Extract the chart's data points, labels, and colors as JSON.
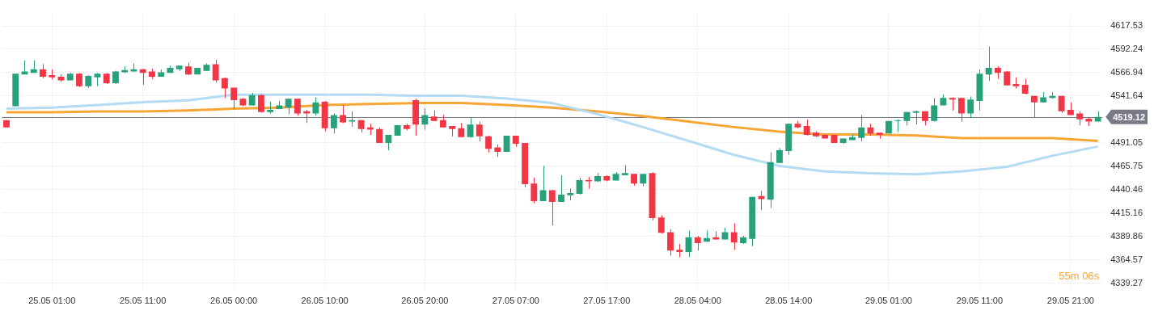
{
  "chart_data": {
    "type": "candlestick",
    "categories": [
      null,
      null,
      null,
      null,
      null,
      "25.05 01:00",
      null,
      null,
      null,
      null,
      null,
      null,
      null,
      null,
      null,
      "25.05 11:00",
      null,
      null,
      null,
      null,
      null,
      null,
      null,
      null,
      null,
      "26.05 00:00",
      null,
      null,
      null,
      null,
      null,
      null,
      null,
      null,
      null,
      "26.05 10:00",
      null,
      null,
      null,
      null,
      null,
      null,
      null,
      null,
      null,
      null,
      "26.05 20:00",
      null,
      null,
      null,
      null,
      null,
      null,
      null,
      null,
      null,
      "27.05 07:00",
      null,
      null,
      null,
      null,
      null,
      null,
      null,
      null,
      null,
      "27.05 17:00",
      null,
      null,
      null,
      null,
      null,
      null,
      null,
      null,
      null,
      "28.05 04:00",
      null,
      null,
      null,
      null,
      null,
      null,
      null,
      null,
      null,
      "28.05 14:00",
      null,
      null,
      null,
      null,
      null,
      null,
      null,
      null,
      null,
      null,
      "29.05 01:00",
      null,
      null,
      null,
      null,
      null,
      null,
      null,
      null,
      null,
      "29.05 11:00",
      null,
      null,
      null,
      null,
      null,
      null,
      null,
      null,
      null,
      "29.05 21:00",
      null,
      null,
      null
    ],
    "ylim": [
      4332,
      4631
    ],
    "yticks": [
      4339.27,
      4364.57,
      4389.86,
      4415.16,
      4440.46,
      4465.75,
      4491.05,
      4541.64,
      4566.94,
      4592.24,
      4617.53
    ],
    "grid": true,
    "ref_lines": [
      {
        "axis": "y",
        "value": 4519.12,
        "label": "4519.12",
        "color": "#787b86"
      }
    ],
    "annotations": [
      "55m 06s"
    ],
    "series": [
      {
        "ohlc": [
          [
            4515.5,
            4515.5,
            4507.6,
            4507.6
          ],
          [
            4530.7,
            4565.8,
            4530.7,
            4565.8
          ],
          [
            4565.0,
            4580.1,
            4565.0,
            4568.1
          ],
          [
            4566.6,
            4580.1,
            4566.6,
            4570.5
          ],
          [
            4570.5,
            4576.1,
            4561.0,
            4562.6
          ],
          [
            4564.2,
            4570.5,
            4559.4,
            4561.8
          ],
          [
            4562.6,
            4565.0,
            4557.0,
            4558.6
          ],
          [
            4558.6,
            4566.6,
            4558.6,
            4565.8
          ],
          [
            4565.8,
            4566.6,
            4551.4,
            4552.2
          ],
          [
            4552.2,
            4564.2,
            4550.6,
            4563.4
          ],
          [
            4561.8,
            4566.6,
            4552.2,
            4565.8
          ],
          [
            4565.8,
            4566.6,
            4554.6,
            4555.4
          ],
          [
            4555.4,
            4568.9,
            4554.6,
            4568.1
          ],
          [
            4567.3,
            4573.7,
            4566.6,
            4569.7
          ],
          [
            4568.1,
            4576.9,
            4568.1,
            4570.5
          ],
          [
            4570.5,
            4571.3,
            4553.8,
            4566.6
          ],
          [
            4568.1,
            4571.3,
            4560.2,
            4562.6
          ],
          [
            4562.6,
            4570.5,
            4562.6,
            4567.3
          ],
          [
            4566.6,
            4574.5,
            4566.6,
            4572.1
          ],
          [
            4570.5,
            4574.5,
            4568.9,
            4574.5
          ],
          [
            4573.7,
            4577.7,
            4564.2,
            4565.0
          ],
          [
            4565.0,
            4572.1,
            4565.0,
            4572.1
          ],
          [
            4568.9,
            4576.9,
            4568.9,
            4575.3
          ],
          [
            4576.1,
            4580.9,
            4556.2,
            4558.6
          ],
          [
            4561.0,
            4561.8,
            4539.5,
            4549.8
          ],
          [
            4550.6,
            4550.6,
            4527.5,
            4537.1
          ],
          [
            4538.7,
            4539.5,
            4530.7,
            4531.5
          ],
          [
            4531.5,
            4545.0,
            4531.5,
            4542.6
          ],
          [
            4542.6,
            4543.4,
            4523.5,
            4524.3
          ],
          [
            4524.3,
            4535.5,
            4522.7,
            4526.7
          ],
          [
            4527.5,
            4536.3,
            4527.5,
            4531.5
          ],
          [
            4529.1,
            4538.7,
            4521.9,
            4538.7
          ],
          [
            4538.7,
            4538.7,
            4520.3,
            4522.7
          ],
          [
            4525.1,
            4526.7,
            4512.4,
            4522.7
          ],
          [
            4522.7,
            4540.2,
            4520.3,
            4534.7
          ],
          [
            4535.5,
            4536.3,
            4503.6,
            4506.8
          ],
          [
            4506.8,
            4522.7,
            4501.2,
            4521.1
          ],
          [
            4521.1,
            4531.5,
            4512.4,
            4513.2
          ],
          [
            4513.9,
            4525.1,
            4508.4,
            4515.5
          ],
          [
            4515.5,
            4515.5,
            4502.0,
            4506.0
          ],
          [
            4507.6,
            4511.6,
            4499.6,
            4505.2
          ],
          [
            4506.0,
            4507.6,
            4490.8,
            4490.8
          ],
          [
            4490.8,
            4499.6,
            4482.9,
            4499.6
          ],
          [
            4498.8,
            4510.0,
            4498.8,
            4510.0
          ],
          [
            4510.0,
            4511.6,
            4504.4,
            4506.0
          ],
          [
            4537.1,
            4538.7,
            4498.8,
            4510.8
          ],
          [
            4510.8,
            4528.3,
            4505.2,
            4521.1
          ],
          [
            4519.5,
            4525.9,
            4514.7,
            4514.7
          ],
          [
            4515.5,
            4521.1,
            4507.6,
            4507.6
          ],
          [
            4509.2,
            4509.2,
            4498.0,
            4506.0
          ],
          [
            4506.8,
            4512.4,
            4497.2,
            4497.2
          ],
          [
            4497.2,
            4517.9,
            4496.4,
            4510.8
          ],
          [
            4510.8,
            4513.9,
            4492.4,
            4498.0
          ],
          [
            4498.0,
            4498.8,
            4480.5,
            4484.5
          ],
          [
            4486.1,
            4489.2,
            4475.7,
            4481.3
          ],
          [
            4481.3,
            4498.8,
            4481.3,
            4498.8
          ],
          [
            4498.8,
            4498.8,
            4486.8,
            4490.0
          ],
          [
            4490.8,
            4490.8,
            4443.0,
            4446.2
          ],
          [
            4447.0,
            4453.4,
            4425.5,
            4427.9
          ],
          [
            4427.9,
            4466.1,
            4427.9,
            4439.8
          ],
          [
            4439.8,
            4439.8,
            4401.6,
            4427.1
          ],
          [
            4427.1,
            4455.8,
            4427.1,
            4435.0
          ],
          [
            4434.2,
            4441.4,
            4428.7,
            4436.6
          ],
          [
            4435.8,
            4453.4,
            4435.0,
            4450.6
          ],
          [
            4450.6,
            4454.2,
            4441.4,
            4449.4
          ],
          [
            4449.4,
            4458.2,
            4448.6,
            4455.0
          ],
          [
            4455.0,
            4455.8,
            4449.4,
            4450.2
          ],
          [
            4450.2,
            4459.3,
            4450.2,
            4457.4
          ],
          [
            4455.8,
            4466.9,
            4455.8,
            4458.2
          ],
          [
            4457.4,
            4457.4,
            4444.6,
            4447.0
          ],
          [
            4447.0,
            4457.4,
            4443.8,
            4457.4
          ],
          [
            4458.2,
            4459.0,
            4407.2,
            4409.5
          ],
          [
            4410.3,
            4412.7,
            4392.8,
            4393.6
          ],
          [
            4394.4,
            4397.6,
            4368.9,
            4374.5
          ],
          [
            4375.3,
            4381.6,
            4367.3,
            4372.9
          ],
          [
            4372.9,
            4396.0,
            4367.3,
            4388.8
          ],
          [
            4388.8,
            4390.4,
            4374.5,
            4382.4
          ],
          [
            4384.0,
            4396.0,
            4384.0,
            4388.0
          ],
          [
            4388.8,
            4395.2,
            4386.4,
            4386.4
          ],
          [
            4386.4,
            4399.2,
            4386.4,
            4394.4
          ],
          [
            4394.4,
            4403.9,
            4375.3,
            4383.2
          ],
          [
            4382.4,
            4390.4,
            4381.6,
            4388.8
          ],
          [
            4387.2,
            4432.6,
            4379.2,
            4432.6
          ],
          [
            4433.4,
            4439.0,
            4418.3,
            4430.2
          ],
          [
            4429.5,
            4480.5,
            4420.7,
            4470.1
          ],
          [
            4469.3,
            4485.3,
            4469.3,
            4482.9
          ],
          [
            4482.1,
            4511.6,
            4478.1,
            4511.6
          ],
          [
            4511.6,
            4514.7,
            4506.8,
            4507.6
          ],
          [
            4509.2,
            4516.3,
            4498.8,
            4499.6
          ],
          [
            4502.0,
            4503.6,
            4497.2,
            4498.0
          ],
          [
            4499.6,
            4500.4,
            4495.6,
            4495.6
          ],
          [
            4499.6,
            4499.6,
            4490.8,
            4490.8
          ],
          [
            4490.8,
            4495.6,
            4490.0,
            4495.6
          ],
          [
            4494.0,
            4500.4,
            4494.0,
            4497.2
          ],
          [
            4496.4,
            4521.1,
            4492.4,
            4507.6
          ],
          [
            4507.6,
            4511.6,
            4498.8,
            4501.2
          ],
          [
            4502.0,
            4502.0,
            4495.6,
            4499.6
          ],
          [
            4501.2,
            4514.7,
            4501.2,
            4514.7
          ],
          [
            4514.7,
            4516.3,
            4502.8,
            4515.5
          ],
          [
            4514.7,
            4524.3,
            4509.9,
            4524.3
          ],
          [
            4523.5,
            4525.9,
            4510.8,
            4525.1
          ],
          [
            4525.1,
            4525.1,
            4509.9,
            4514.7
          ],
          [
            4514.7,
            4539.5,
            4514.0,
            4531.5
          ],
          [
            4531.5,
            4543.4,
            4531.5,
            4539.5
          ],
          [
            4539.5,
            4540.2,
            4525.9,
            4537.9
          ],
          [
            4539.5,
            4539.5,
            4514.0,
            4522.7
          ],
          [
            4522.7,
            4541.1,
            4518.0,
            4537.9
          ],
          [
            4536.3,
            4570.5,
            4525.9,
            4565.8
          ],
          [
            4565.0,
            4595.2,
            4557.8,
            4572.1
          ],
          [
            4572.1,
            4573.7,
            4560.2,
            4566.6
          ],
          [
            4568.1,
            4568.9,
            4553.0,
            4553.0
          ],
          [
            4554.6,
            4561.8,
            4549.8,
            4552.2
          ],
          [
            4553.8,
            4560.2,
            4543.4,
            4544.2
          ],
          [
            4541.8,
            4541.8,
            4518.7,
            4534.7
          ],
          [
            4534.7,
            4545.8,
            4534.7,
            4540.2
          ],
          [
            4539.5,
            4545.8,
            4538.7,
            4541.8
          ],
          [
            4541.8,
            4541.8,
            4523.5,
            4525.1
          ],
          [
            4526.7,
            4534.7,
            4521.1,
            4521.1
          ],
          [
            4522.7,
            4525.1,
            4509.9,
            4516.3
          ],
          [
            4517.1,
            4517.9,
            4509.2,
            4514.0
          ],
          [
            4514.0,
            4525.1,
            4514.0,
            4519.12
          ]
        ],
        "colors": [
          "#f23645",
          "#26a17b",
          "#26a17b",
          "#26a17b",
          "#f23645",
          "#f23645",
          "#f23645",
          "#26a17b",
          "#f23645",
          "#26a17b",
          "#26a17b",
          "#f23645",
          "#26a17b",
          "#26a17b",
          "#26a17b",
          "#f23645",
          "#f23645",
          "#26a17b",
          "#26a17b",
          "#26a17b",
          "#f23645",
          "#26a17b",
          "#26a17b",
          "#f23645",
          "#f23645",
          "#f23645",
          "#f23645",
          "#26a17b",
          "#f23645",
          "#26a17b",
          "#26a17b",
          "#26a17b",
          "#f23645",
          "#f23645",
          "#26a17b",
          "#f23645",
          "#26a17b",
          "#f23645",
          "#26a17b",
          "#f23645",
          "#f23645",
          "#f23645",
          "#26a17b",
          "#26a17b",
          "#f23645",
          "#f23645",
          "#26a17b",
          "#f23645",
          "#f23645",
          "#f23645",
          "#f23645",
          "#26a17b",
          "#f23645",
          "#f23645",
          "#f23645",
          "#26a17b",
          "#f23645",
          "#f23645",
          "#f23645",
          "#26a17b",
          "#f23645",
          "#26a17b",
          "#26a17b",
          "#26a17b",
          "#f23645",
          "#26a17b",
          "#f23645",
          "#26a17b",
          "#26a17b",
          "#f23645",
          "#26a17b",
          "#f23645",
          "#f23645",
          "#f23645",
          "#f23645",
          "#26a17b",
          "#f23645",
          "#26a17b",
          "#f23645",
          "#26a17b",
          "#f23645",
          "#26a17b",
          "#26a17b",
          "#f23645",
          "#26a17b",
          "#26a17b",
          "#26a17b",
          "#f23645",
          "#f23645",
          "#f23645",
          "#f23645",
          "#f23645",
          "#26a17b",
          "#26a17b",
          "#26a17b",
          "#f23645",
          "#f23645",
          "#26a17b",
          "#26a17b",
          "#26a17b",
          "#26a17b",
          "#f23645",
          "#26a17b",
          "#26a17b",
          "#f23645",
          "#f23645",
          "#26a17b",
          "#26a17b",
          "#26a17b",
          "#f23645",
          "#f23645",
          "#f23645",
          "#f23645",
          "#f23645",
          "#26a17b",
          "#26a17b",
          "#f23645",
          "#f23645",
          "#f23645",
          "#f23645",
          "#26a17b"
        ]
      },
      {
        "type": "line",
        "color": "#b3dcf2",
        "values": [
          4528,
          null,
          null,
          null,
          null,
          4529,
          null,
          null,
          null,
          null,
          4532,
          null,
          null,
          null,
          null,
          4535,
          null,
          null,
          null,
          null,
          4537,
          null,
          null,
          null,
          null,
          4543,
          null,
          null,
          null,
          null,
          4543,
          null,
          null,
          null,
          null,
          4543,
          null,
          null,
          null,
          null,
          4543,
          null,
          null,
          null,
          null,
          4542,
          null,
          null,
          null,
          null,
          4542,
          null,
          null,
          null,
          null,
          4539,
          null,
          null,
          null,
          null,
          4534,
          null,
          null,
          null,
          null,
          4522,
          null,
          null,
          null,
          null,
          4508,
          null,
          null,
          null,
          null,
          4493,
          null,
          null,
          null,
          null,
          4478,
          null,
          null,
          null,
          null,
          4466,
          null,
          null,
          null,
          null,
          4460,
          null,
          null,
          null,
          null,
          4458,
          null,
          null,
          null,
          null,
          4457,
          null,
          null,
          null,
          null,
          4460,
          null,
          null,
          null,
          null,
          4465,
          null,
          null,
          null,
          null,
          4477,
          null,
          null,
          null,
          null,
          4487
        ]
      },
      {
        "type": "line",
        "color": "#f7a535",
        "values": [
          4524,
          null,
          null,
          null,
          null,
          4524,
          null,
          null,
          null,
          null,
          4525,
          null,
          null,
          null,
          null,
          4525,
          null,
          null,
          null,
          null,
          4526,
          null,
          null,
          null,
          null,
          4528,
          null,
          null,
          null,
          null,
          4529,
          null,
          null,
          null,
          null,
          4532,
          null,
          null,
          null,
          null,
          4533,
          null,
          null,
          null,
          null,
          4534,
          null,
          null,
          null,
          null,
          4534,
          null,
          null,
          null,
          null,
          4532,
          null,
          null,
          null,
          null,
          4529,
          null,
          null,
          null,
          null,
          4525,
          null,
          null,
          null,
          null,
          4520,
          null,
          null,
          null,
          null,
          4514,
          null,
          null,
          null,
          null,
          4508,
          null,
          null,
          null,
          null,
          4503,
          null,
          null,
          null,
          null,
          4500,
          null,
          null,
          null,
          null,
          4500,
          null,
          null,
          null,
          null,
          4499,
          null,
          null,
          null,
          null,
          4496,
          null,
          null,
          null,
          null,
          4496,
          null,
          null,
          null,
          null,
          4496,
          null,
          null,
          null,
          null,
          4493
        ]
      }
    ]
  }
}
